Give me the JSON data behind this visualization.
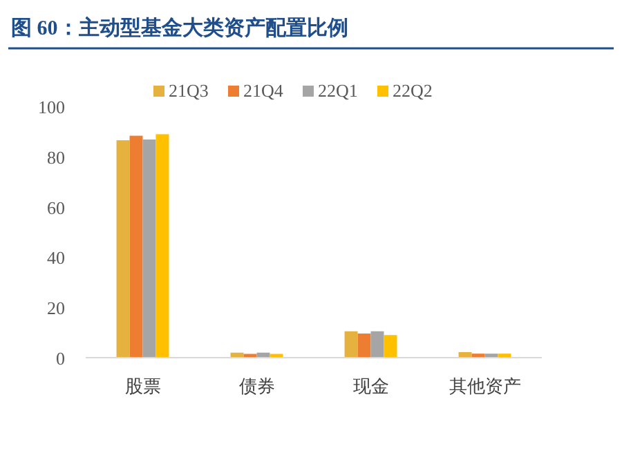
{
  "chart_data": {
    "type": "bar",
    "title": "图 60：主动型基金大类资产配置比例",
    "categories": [
      "股票",
      "债券",
      "现金",
      "其他资产"
    ],
    "series": [
      {
        "name": "21Q3",
        "color": "#e6b23f",
        "values": [
          86.5,
          2.0,
          10.5,
          2.2
        ]
      },
      {
        "name": "21Q4",
        "color": "#ed7d31",
        "values": [
          88.3,
          1.5,
          9.6,
          1.6
        ]
      },
      {
        "name": "22Q1",
        "color": "#a5a5a5",
        "values": [
          86.8,
          2.0,
          10.5,
          1.6
        ]
      },
      {
        "name": "22Q2",
        "color": "#ffc000",
        "values": [
          88.9,
          1.5,
          9.0,
          1.6
        ]
      }
    ],
    "ylim": [
      0,
      100
    ],
    "yticks": [
      0,
      20,
      40,
      60,
      80,
      100
    ],
    "legend": "top"
  }
}
